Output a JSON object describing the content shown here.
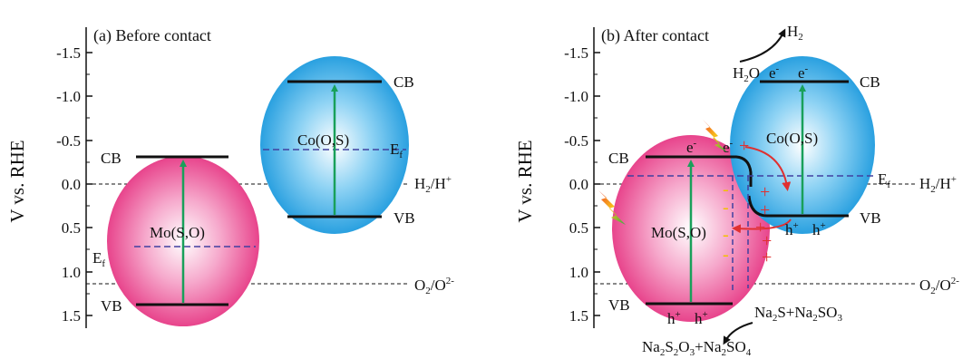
{
  "y_axis_label": "V vs. RHE",
  "y_ticks": [
    "-1.5",
    "-1.0",
    "-0.5",
    "0.0",
    "0.5",
    "1.0",
    "1.5"
  ],
  "colors": {
    "mo_phase": "#e83a8c",
    "co_phase": "#1a9fe0",
    "arrow_green": "#19a05a",
    "arrow_red": "#e03030",
    "fermi_dash": "#4040a0",
    "plus_red": "#e03030",
    "minus_yellow": "#f2c000"
  },
  "icons": [
    "lightning-icon"
  ],
  "panel_a": {
    "title": "(a)  Before contact",
    "mo_name": "Mo(S,O)",
    "co_name": "Co(O,S)",
    "cb": "CB",
    "vb": "VB",
    "e_main": "E",
    "e_sub": "f",
    "h2_label": "H",
    "h2_sub": "2",
    "h2_tail": "/H",
    "h2_sup": "+",
    "o2_label": "O",
    "o2_sub": "2",
    "o2_tail": "/O",
    "o2_sup": "2-"
  },
  "panel_b": {
    "title": "(b)  After contact",
    "mo_name": "Mo(S,O)",
    "co_name": "Co(O,S)",
    "cb": "CB",
    "vb": "VB",
    "e_main": "E",
    "e_sub": "f",
    "h2_label": "H",
    "h2_sub": "2",
    "h2_tail": "/H",
    "h2_sup": "+",
    "o2_label": "O",
    "o2_sub": "2",
    "o2_tail": "/O",
    "o2_sup": "2-",
    "h2_product": "H",
    "h2_product_sub": "2",
    "h2o": "H",
    "h2o_sub": "2",
    "h2o_tail": "O",
    "electron": "e",
    "electron_sup": "-",
    "hole": "h",
    "hole_sup": "+",
    "plus": "+",
    "minus": "-",
    "sac_na1": "Na",
    "sac_s1": "2",
    "sac_mid": "S+Na",
    "sac_s2": "2",
    "sac_so": "SO",
    "sac_s3": "3",
    "prod_na1": "Na",
    "prod_s1": "2",
    "prod_sa": "S",
    "prod_s2": "2",
    "prod_o": "O",
    "prod_s3": "3",
    "prod_mid": "+Na",
    "prod_s4": "2",
    "prod_so": "SO",
    "prod_s5": "4"
  }
}
